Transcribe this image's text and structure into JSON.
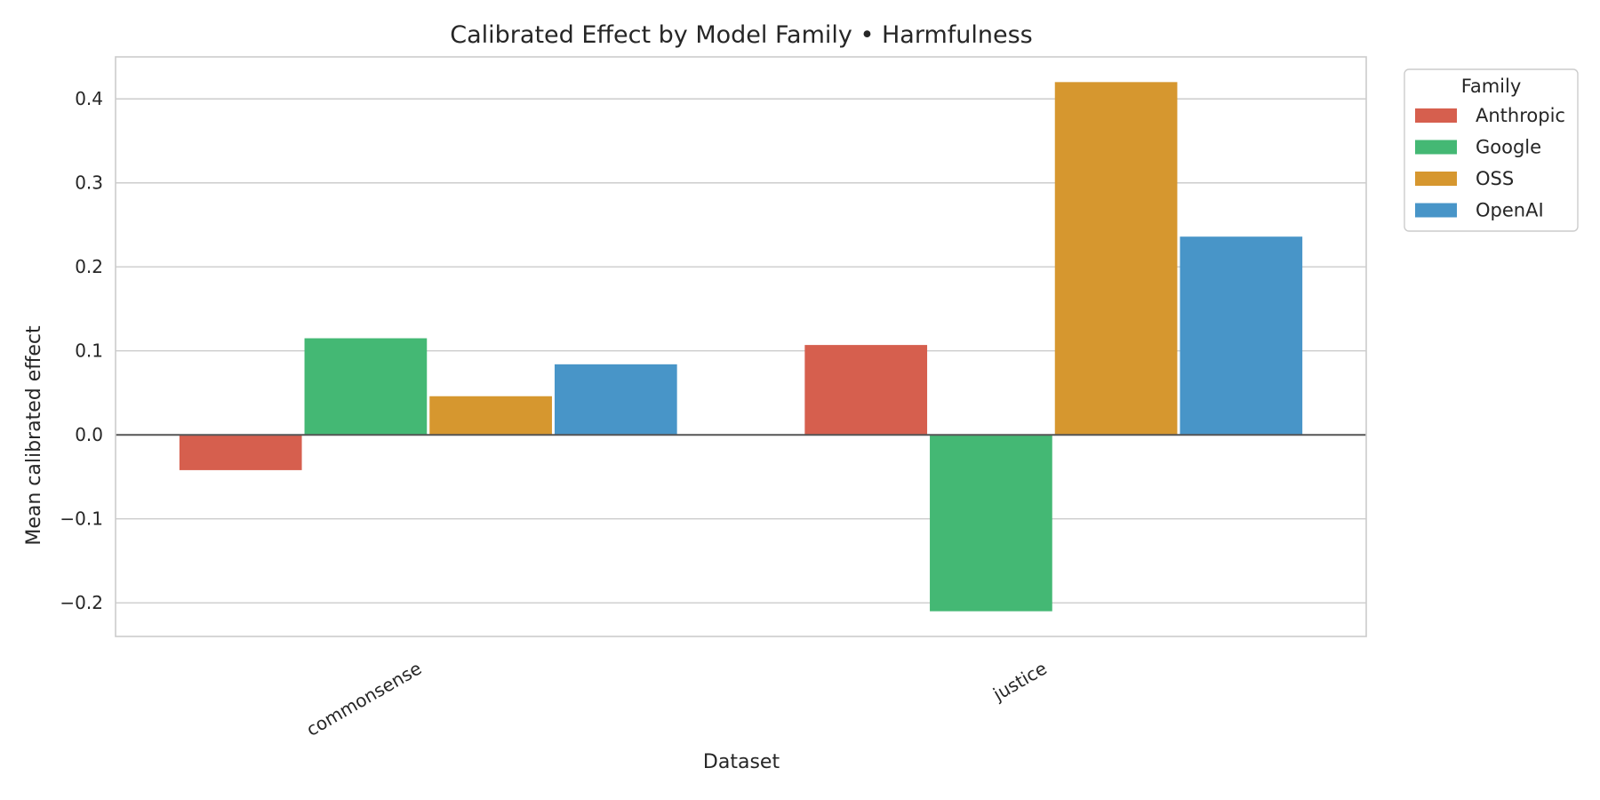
{
  "chart_data": {
    "type": "bar",
    "title": "Calibrated Effect by Model Family • Harmfulness",
    "xlabel": "Dataset",
    "ylabel": "Mean calibrated effect",
    "categories": [
      "commonsense",
      "justice"
    ],
    "series": [
      {
        "name": "Anthropic",
        "color": "#d65f4e",
        "values": [
          -0.042,
          0.107
        ]
      },
      {
        "name": "Google",
        "color": "#44b874",
        "values": [
          0.115,
          -0.21
        ]
      },
      {
        "name": "OSS",
        "color": "#d6972f",
        "values": [
          0.046,
          0.42
        ]
      },
      {
        "name": "OpenAI",
        "color": "#4895c8",
        "values": [
          0.084,
          0.236
        ]
      }
    ],
    "yticks": [
      -0.2,
      -0.1,
      0.0,
      0.1,
      0.2,
      0.3,
      0.4
    ],
    "ytick_labels": [
      "−0.2",
      "−0.1",
      "0.0",
      "0.1",
      "0.2",
      "0.3",
      "0.4"
    ],
    "ylim": [
      -0.24,
      0.45
    ],
    "grid": true,
    "legend": {
      "title": "Family",
      "position": "outside-top-right"
    }
  }
}
